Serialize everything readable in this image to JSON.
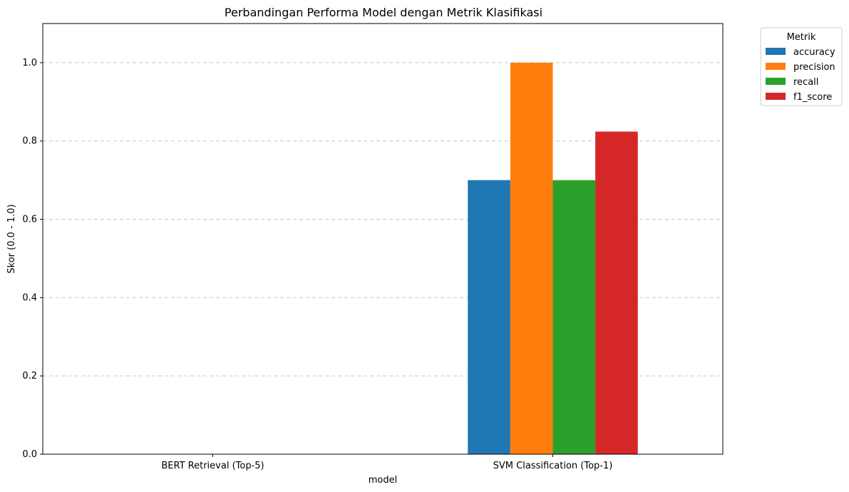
{
  "chart_data": {
    "type": "bar",
    "title": "Perbandingan Performa Model dengan Metrik Klasifikasi",
    "xlabel": "model",
    "ylabel": "Skor (0.0 - 1.0)",
    "ylim": [
      0,
      1.1
    ],
    "yticks": [
      0.0,
      0.2,
      0.4,
      0.6,
      0.8,
      1.0
    ],
    "ytick_labels": [
      "0.0",
      "0.2",
      "0.4",
      "0.6",
      "0.8",
      "1.0"
    ],
    "grid": "y-dashed",
    "categories": [
      "BERT Retrieval (Top-5)",
      "SVM Classification (Top-1)"
    ],
    "legend": {
      "title": "Metrik",
      "placement": "outside-top-right"
    },
    "series": [
      {
        "name": "accuracy",
        "color": "#1f77b4",
        "values": [
          0,
          0.7
        ]
      },
      {
        "name": "precision",
        "color": "#ff7f0e",
        "values": [
          0,
          1.0
        ]
      },
      {
        "name": "recall",
        "color": "#2ca02c",
        "values": [
          0,
          0.7
        ]
      },
      {
        "name": "f1_score",
        "color": "#d62728",
        "values": [
          0,
          0.824
        ]
      }
    ]
  }
}
